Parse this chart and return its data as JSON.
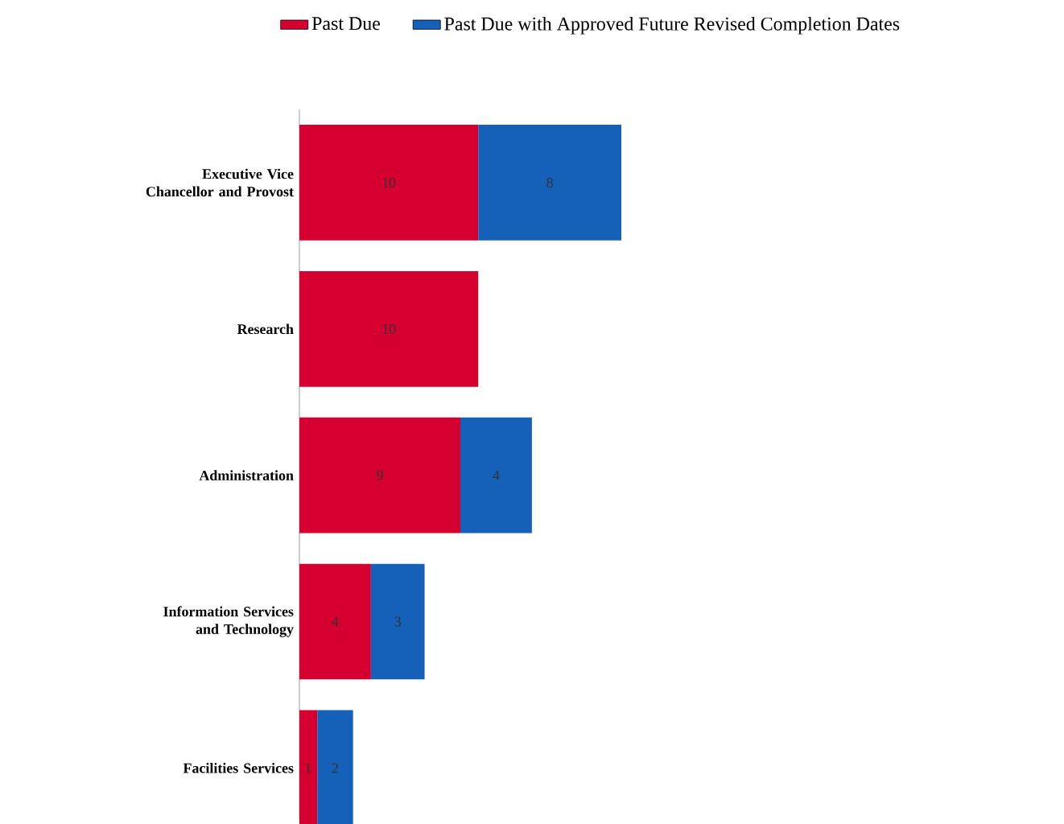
{
  "chart_data": {
    "type": "bar",
    "orientation": "horizontal",
    "stacked": true,
    "categories": [
      "Executive Vice Chancellor and Provost",
      "Research",
      "Administration",
      "Information Services and Technology",
      "Facilities Services"
    ],
    "series": [
      {
        "name": "Past Due",
        "color": "#d5002f",
        "values": [
          10,
          10,
          9,
          4,
          1
        ]
      },
      {
        "name": "Past Due with Approved Future Revised Completion Dates",
        "color": "#1560b8",
        "values": [
          8,
          null,
          4,
          3,
          2
        ]
      }
    ],
    "tick_labels": "y",
    "data_labels": true,
    "legend": "top"
  }
}
